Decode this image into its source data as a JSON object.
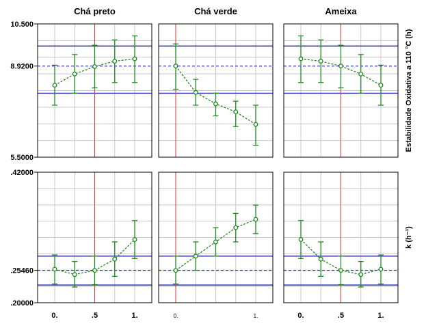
{
  "chart_data": {
    "type": "line",
    "panel_titles": [
      "Chá preto",
      "Chá verde",
      "Ameixa"
    ],
    "x_tick_labels": [
      [
        "0.",
        ".5",
        "1."
      ],
      [
        "0.",
        "1."
      ],
      [
        "0.",
        ".5",
        "1."
      ]
    ],
    "rows": [
      {
        "ylabel": "Estabilidade Oxidativa a 110 °C (h)",
        "ylim": [
          5.5,
          10.5
        ],
        "y_tick_labels": [
          "10.500",
          "8.9200",
          "5.5000"
        ],
        "y_tick_values": [
          10.5,
          8.92,
          5.5
        ],
        "reference": {
          "mean": 8.92,
          "upper": 9.67,
          "lower": 7.9
        },
        "panels": [
          {
            "x": [
              0,
              0.25,
              0.5,
              0.75,
              1
            ],
            "y": [
              8.2,
              8.62,
              8.9,
              9.1,
              9.19
            ],
            "lo": [
              7.45,
              7.9,
              8.1,
              8.3,
              8.3
            ],
            "hi": [
              8.95,
              9.35,
              9.7,
              9.9,
              10.05
            ],
            "vline": 0.5
          },
          {
            "x": [
              0,
              0.25,
              0.5,
              0.75,
              1
            ],
            "y": [
              8.92,
              7.93,
              7.5,
              7.2,
              6.73
            ],
            "lo": [
              8.05,
              7.45,
              7.05,
              6.65,
              5.95
            ],
            "hi": [
              9.75,
              8.42,
              7.9,
              7.6,
              7.45
            ],
            "vline": 0
          },
          {
            "x": [
              0,
              0.25,
              0.5,
              0.75,
              1
            ],
            "y": [
              9.19,
              9.1,
              8.92,
              8.62,
              8.2
            ],
            "lo": [
              8.3,
              8.3,
              8.1,
              7.9,
              7.45
            ],
            "hi": [
              10.05,
              9.9,
              9.7,
              9.35,
              8.95
            ],
            "vline": 0.5
          }
        ]
      },
      {
        "ylabel": "k (h⁻¹)",
        "ylim": [
          0.2,
          0.42
        ],
        "y_tick_labels": [
          ".42000",
          ".25460",
          ".20000"
        ],
        "y_tick_values": [
          0.42,
          0.2546,
          0.2
        ],
        "reference": {
          "mean": 0.2546,
          "upper": 0.2785,
          "lower": 0.2298
        },
        "panels": [
          {
            "x": [
              0,
              0.25,
              0.5,
              0.75,
              1
            ],
            "y": [
              0.2565,
              0.2475,
              0.2545,
              0.2735,
              0.3065
            ],
            "lo": [
              0.2315,
              0.2265,
              0.2305,
              0.2445,
              0.2745
            ],
            "hi": [
              0.2805,
              0.2695,
              0.2785,
              0.3025,
              0.3385
            ],
            "vline": 0.5
          },
          {
            "x": [
              0,
              0.25,
              0.5,
              0.75,
              1
            ],
            "y": [
              0.2545,
              0.2785,
              0.3025,
              0.3265,
              0.3405
            ],
            "lo": [
              0.2315,
              0.2545,
              0.2785,
              0.3025,
              0.3165
            ],
            "hi": [
              0.2785,
              0.3025,
              0.3265,
              0.3505,
              0.3645
            ],
            "vline": 0
          },
          {
            "x": [
              0,
              0.25,
              0.5,
              0.75,
              1
            ],
            "y": [
              0.3065,
              0.2735,
              0.2545,
              0.2475,
              0.2565
            ],
            "lo": [
              0.2745,
              0.2445,
              0.2305,
              0.2265,
              0.2315
            ],
            "hi": [
              0.3385,
              0.3025,
              0.2785,
              0.2695,
              0.2805
            ],
            "vline": 0.5
          }
        ]
      }
    ],
    "grid": true,
    "colors": {
      "series": "#1e8a1e",
      "reference_lines": "#2a2a9a",
      "mean_line": "#3030c0",
      "vline": "#c84040",
      "grid": "#c8c8c8"
    }
  }
}
